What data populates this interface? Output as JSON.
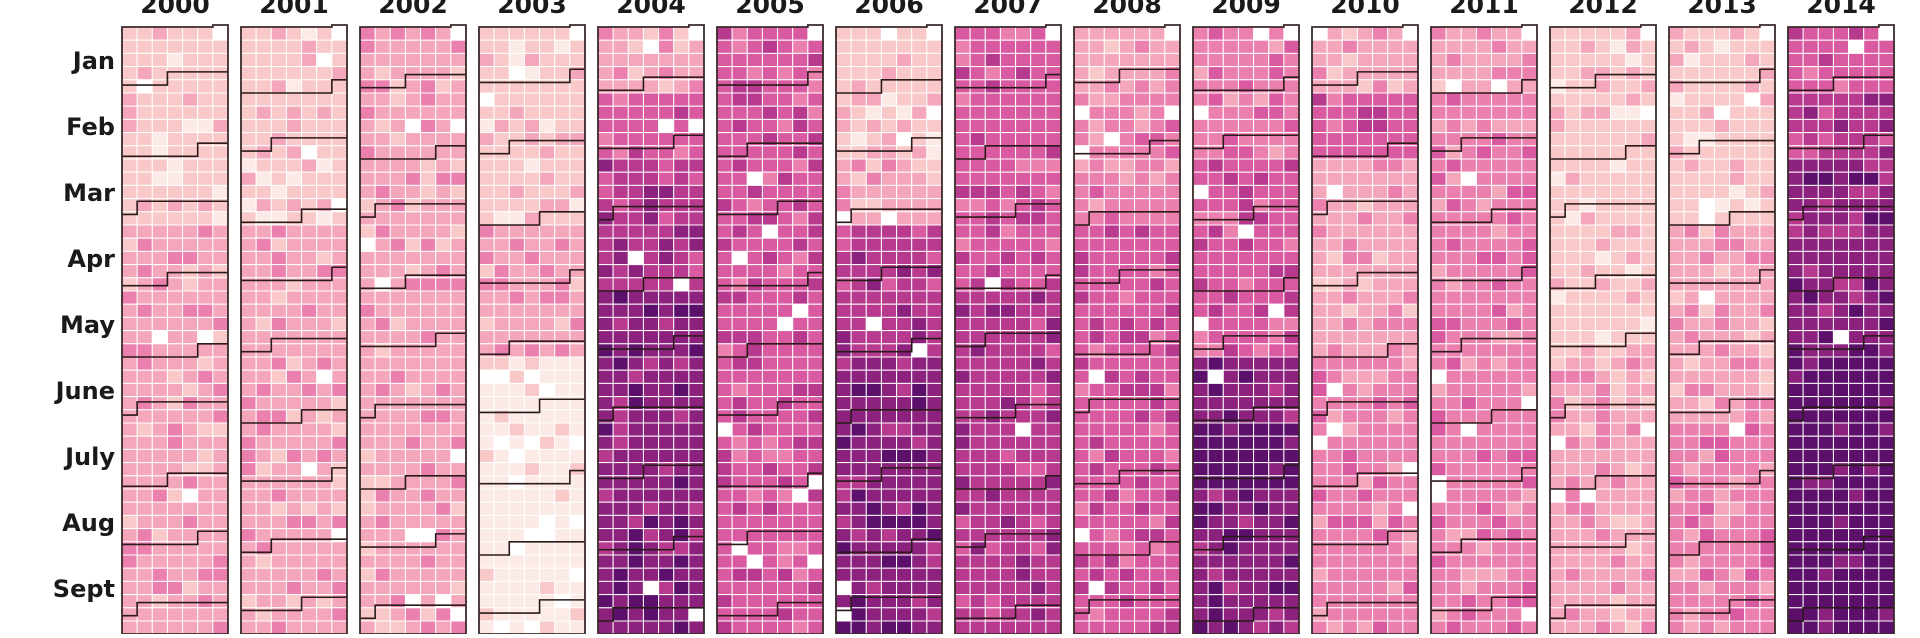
{
  "chart_data": {
    "type": "heatmap",
    "title": "",
    "xlabel": "",
    "ylabel": "",
    "years": [
      "2000",
      "2001",
      "2002",
      "2003",
      "2004",
      "2005",
      "2006",
      "2007",
      "2008",
      "2009",
      "2010",
      "2011",
      "2012",
      "2013",
      "2014"
    ],
    "months": [
      "Jan",
      "Feb",
      "Mar",
      "Apr",
      "May",
      "June",
      "July",
      "Aug",
      "Sept"
    ],
    "color_scale": [
      "#fbeae6",
      "#f9c8c8",
      "#f4a7bb",
      "#eb7fae",
      "#d95aa0",
      "#b83a8f",
      "#8c217e",
      "#5c0f6b"
    ],
    "intensity_by_year_month": [
      [
        1,
        1,
        1,
        2,
        2,
        2,
        2,
        2,
        2
      ],
      [
        1,
        1,
        1,
        2,
        2,
        2,
        2,
        2,
        2
      ],
      [
        2,
        2,
        2,
        2,
        2,
        2,
        2,
        2,
        2
      ],
      [
        1,
        1,
        1,
        2,
        2,
        0,
        0,
        0,
        0
      ],
      [
        2,
        4,
        5,
        5,
        6,
        6,
        6,
        6,
        6
      ],
      [
        4,
        4,
        4,
        4,
        4,
        4,
        4,
        4,
        4
      ],
      [
        1,
        1,
        2,
        5,
        5,
        6,
        6,
        6,
        6
      ],
      [
        4,
        4,
        4,
        4,
        5,
        5,
        5,
        5,
        5
      ],
      [
        2,
        3,
        3,
        4,
        4,
        4,
        4,
        4,
        4
      ],
      [
        3,
        3,
        4,
        4,
        4,
        6,
        7,
        6,
        6
      ],
      [
        2,
        4,
        2,
        2,
        2,
        3,
        3,
        3,
        3
      ],
      [
        2,
        3,
        3,
        3,
        3,
        3,
        3,
        3,
        3
      ],
      [
        1,
        1,
        1,
        1,
        1,
        2,
        2,
        2,
        2
      ],
      [
        1,
        1,
        1,
        2,
        2,
        2,
        3,
        3,
        3
      ],
      [
        4,
        5,
        6,
        6,
        6,
        7,
        7,
        7,
        7
      ]
    ]
  }
}
